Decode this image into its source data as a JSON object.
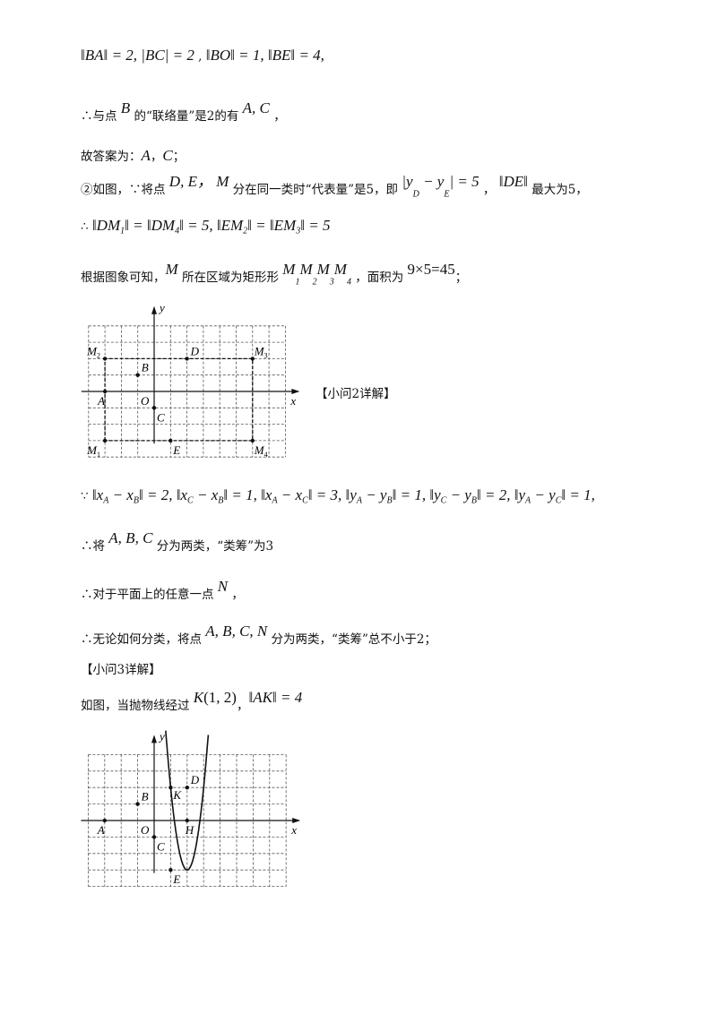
{
  "lines": [
    {
      "top": 52,
      "segs": [
        {
          "t": "‖BA‖ = 2, |BC| = 2",
          "c": "m"
        },
        {
          "t": " , "
        },
        {
          "t": "‖BO‖ = 1, ‖BE‖ = 4,",
          "c": "m"
        }
      ]
    },
    {
      "top": 118,
      "segs": [
        {
          "t": "∴与点 "
        },
        {
          "t": "B",
          "c": "m sup"
        },
        {
          "t": " 的“联络量”是2的有 "
        },
        {
          "t": "A, C",
          "c": "m sup"
        },
        {
          "t": " ，"
        }
      ]
    },
    {
      "top": 163,
      "segs": [
        {
          "t": "故答案为："
        },
        {
          "t": "A",
          "c": "m"
        },
        {
          "t": "，"
        },
        {
          "t": "C",
          "c": "m"
        },
        {
          "t": "；"
        }
      ]
    },
    {
      "top": 196,
      "segs": [
        {
          "t": "②如图，∵将点 "
        },
        {
          "t": "D, E， M",
          "c": "m sup"
        },
        {
          "t": " 分在同一类时“代表量”是5，即 "
        },
        {
          "t": "|y",
          "c": "m sup"
        },
        {
          "t": "D",
          "c": "sub"
        },
        {
          "t": " − y",
          "c": "m sup"
        },
        {
          "t": "E",
          "c": "sub"
        },
        {
          "t": "| = 5",
          "c": "m sup"
        },
        {
          "t": " ， "
        },
        {
          "t": "‖DE‖",
          "c": "m sup"
        },
        {
          "t": " 最大为5，"
        }
      ]
    },
    {
      "top": 242,
      "segs": [
        {
          "t": "∴ "
        },
        {
          "t": "‖DM",
          "c": "m"
        },
        {
          "t": "1",
          "c": "sub"
        },
        {
          "t": "‖ = ‖DM",
          "c": "m"
        },
        {
          "t": "4",
          "c": "sub"
        },
        {
          "t": "‖ = 5, ‖EM",
          "c": "m"
        },
        {
          "t": "2",
          "c": "sub"
        },
        {
          "t": "‖ = ‖EM",
          "c": "m"
        },
        {
          "t": "3",
          "c": "sub"
        },
        {
          "t": "‖ = 5",
          "c": "m"
        }
      ]
    },
    {
      "top": 298,
      "segs": [
        {
          "t": "根据图象可知，"
        },
        {
          "t": "M",
          "c": "m sup"
        },
        {
          "t": " 所在区域为矩形形 "
        },
        {
          "t": "M",
          "c": "m sup"
        },
        {
          "t": "1",
          "c": "sub"
        },
        {
          "t": "M",
          "c": "m sup"
        },
        {
          "t": "2",
          "c": "sub"
        },
        {
          "t": "M",
          "c": "m sup"
        },
        {
          "t": "3",
          "c": "sub"
        },
        {
          "t": "M",
          "c": "m sup"
        },
        {
          "t": "4",
          "c": "sub"
        },
        {
          "t": " ，面积为 "
        },
        {
          "t": "9×5=45",
          "c": "mn sup"
        },
        {
          "t": "；"
        }
      ]
    },
    {
      "top": 543,
      "segs": [
        {
          "t": "∵ "
        },
        {
          "t": "‖x",
          "c": "m"
        },
        {
          "t": "A",
          "c": "sub"
        },
        {
          "t": " − x",
          "c": "m"
        },
        {
          "t": "B",
          "c": "sub"
        },
        {
          "t": "‖ = 2, ‖x",
          "c": "m"
        },
        {
          "t": "C",
          "c": "sub"
        },
        {
          "t": " − x",
          "c": "m"
        },
        {
          "t": "B",
          "c": "sub"
        },
        {
          "t": "‖ = 1, ‖x",
          "c": "m"
        },
        {
          "t": "A",
          "c": "sub"
        },
        {
          "t": " − x",
          "c": "m"
        },
        {
          "t": "C",
          "c": "sub"
        },
        {
          "t": "‖ = 3, ‖y",
          "c": "m"
        },
        {
          "t": "A",
          "c": "sub"
        },
        {
          "t": " − y",
          "c": "m"
        },
        {
          "t": "B",
          "c": "sub"
        },
        {
          "t": "‖ = 1, ‖y",
          "c": "m"
        },
        {
          "t": "C",
          "c": "sub"
        },
        {
          "t": " − y",
          "c": "m"
        },
        {
          "t": "B",
          "c": "sub"
        },
        {
          "t": "‖ = 2, ‖y",
          "c": "m"
        },
        {
          "t": "A",
          "c": "sub"
        },
        {
          "t": " − y",
          "c": "m"
        },
        {
          "t": "C",
          "c": "sub"
        },
        {
          "t": "‖ = 1,",
          "c": "m"
        }
      ]
    },
    {
      "top": 598,
      "segs": [
        {
          "t": "∴将 "
        },
        {
          "t": "A, B, C",
          "c": "m sup"
        },
        {
          "t": " 分为两类，“类筹”为3"
        }
      ]
    },
    {
      "top": 652,
      "segs": [
        {
          "t": "∴对于平面上的任意一点 "
        },
        {
          "t": "N",
          "c": "m sup"
        },
        {
          "t": " ，"
        }
      ]
    },
    {
      "top": 702,
      "segs": [
        {
          "t": "∴无论如何分类，将点 "
        },
        {
          "t": "A, B, C, N",
          "c": "m sup"
        },
        {
          "t": " 分为两类，“类筹”总不小于2；"
        }
      ]
    },
    {
      "top": 736,
      "segs": [
        {
          "t": "【小问3详解】"
        }
      ]
    },
    {
      "top": 776,
      "segs": [
        {
          "t": "如图，当抛物线经过 "
        },
        {
          "t": "K",
          "c": "m sup"
        },
        {
          "t": "(1, 2)",
          "c": "mn sup"
        },
        {
          "t": "，"
        },
        {
          "t": "‖AK‖ = 4",
          "c": "m sup"
        }
      ]
    }
  ],
  "side_label": "【小问2详解】",
  "figures": [
    {
      "axis_labels": {
        "x": "x",
        "y": "y",
        "origin": "O"
      },
      "grid": {
        "xmin": -4,
        "xmax": 8,
        "ymin": -4,
        "ymax": 4
      },
      "points": [
        {
          "label": "A",
          "x": -3,
          "y": 0
        },
        {
          "label": "B",
          "x": -1,
          "y": 1
        },
        {
          "label": "C",
          "x": 0,
          "y": -1
        },
        {
          "label": "D",
          "x": 2,
          "y": 2
        },
        {
          "label": "E",
          "x": 1,
          "y": -3
        },
        {
          "label": "M1",
          "x": -3,
          "y": -3
        },
        {
          "label": "M2",
          "x": -3,
          "y": 2
        },
        {
          "label": "M3",
          "x": 6,
          "y": 2
        },
        {
          "label": "M4",
          "x": 6,
          "y": -3
        }
      ],
      "rectangle": [
        "M1",
        "M2",
        "M3",
        "M4"
      ]
    },
    {
      "axis_labels": {
        "x": "x",
        "y": "y",
        "origin": "O"
      },
      "grid": {
        "xmin": -4,
        "xmax": 8,
        "ymin": -4,
        "ymax": 4
      },
      "points": [
        {
          "label": "A",
          "x": -3,
          "y": 0
        },
        {
          "label": "B",
          "x": -1,
          "y": 1
        },
        {
          "label": "C",
          "x": 0,
          "y": -1
        },
        {
          "label": "D",
          "x": 2,
          "y": 2
        },
        {
          "label": "E",
          "x": 1,
          "y": -3
        },
        {
          "label": "K",
          "x": 1,
          "y": 2
        },
        {
          "label": "H",
          "x": 2,
          "y": 0
        }
      ],
      "parabola": {
        "a": 5,
        "h": 2,
        "k": -3
      }
    }
  ]
}
